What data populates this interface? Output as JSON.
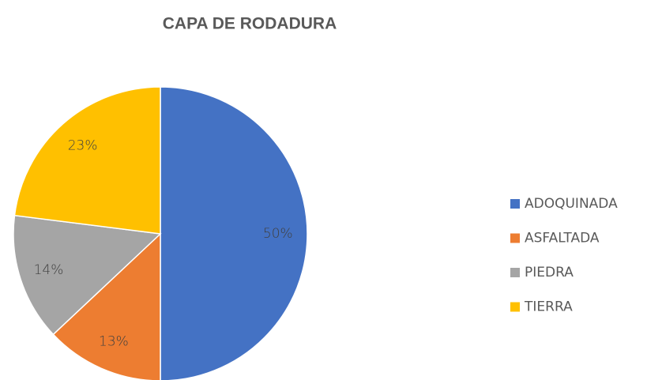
{
  "chart_data": {
    "type": "pie",
    "title": "CAPA DE RODADURA",
    "categories": [
      "ADOQUINADA",
      "ASFALTADA",
      "PIEDRA",
      "TIERRA"
    ],
    "values": [
      50,
      13,
      14,
      23
    ],
    "value_labels": [
      "50%",
      "13%",
      "14%",
      "23%"
    ],
    "colors": [
      "#4472c4",
      "#ed7d31",
      "#a5a5a5",
      "#ffc000"
    ],
    "legend": "right"
  }
}
